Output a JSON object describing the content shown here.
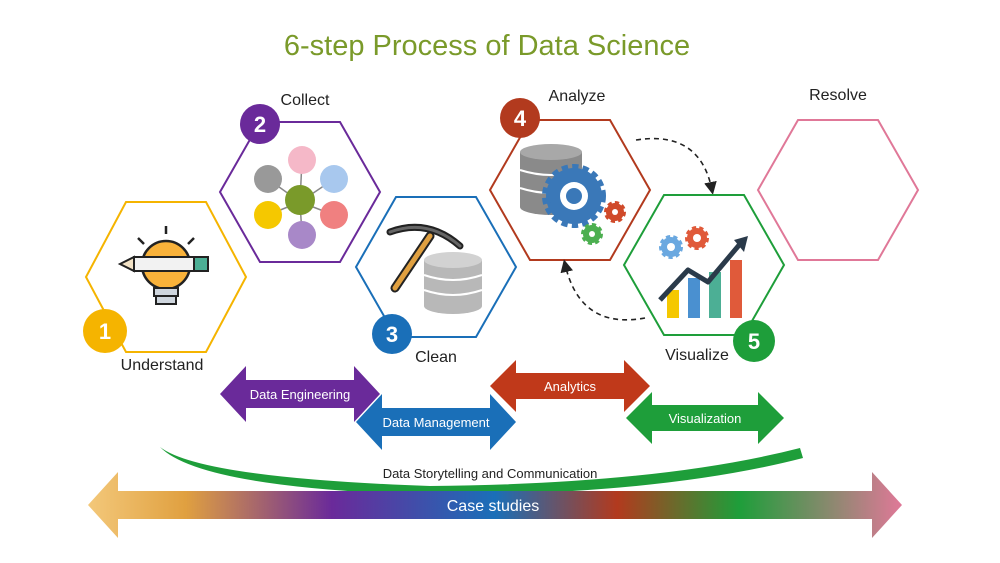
{
  "title": "6-step Process of Data Science",
  "steps": [
    {
      "number": "1",
      "label": "Understand",
      "color": "#f5b400"
    },
    {
      "number": "2",
      "label": "Collect",
      "color": "#6a2a9a"
    },
    {
      "number": "3",
      "label": "Clean",
      "color": "#1a6fb8"
    },
    {
      "number": "4",
      "label": "Analyze",
      "color": "#b23a1e"
    },
    {
      "number": "5",
      "label": "Visualize",
      "color": "#1e9e3a"
    },
    {
      "label": "Resolve",
      "color": "#e07898"
    }
  ],
  "arrows": {
    "data_engineering": "Data Engineering",
    "data_management": "Data Management",
    "analytics": "Analytics",
    "visualization": "Visualization"
  },
  "storytelling": "Data Storytelling and Communication",
  "case_studies": "Case studies",
  "icons": [
    "lightbulb-pencil-icon",
    "network-nodes-icon",
    "pickaxe-database-icon",
    "database-gears-icon",
    "growth-chart-icon"
  ]
}
